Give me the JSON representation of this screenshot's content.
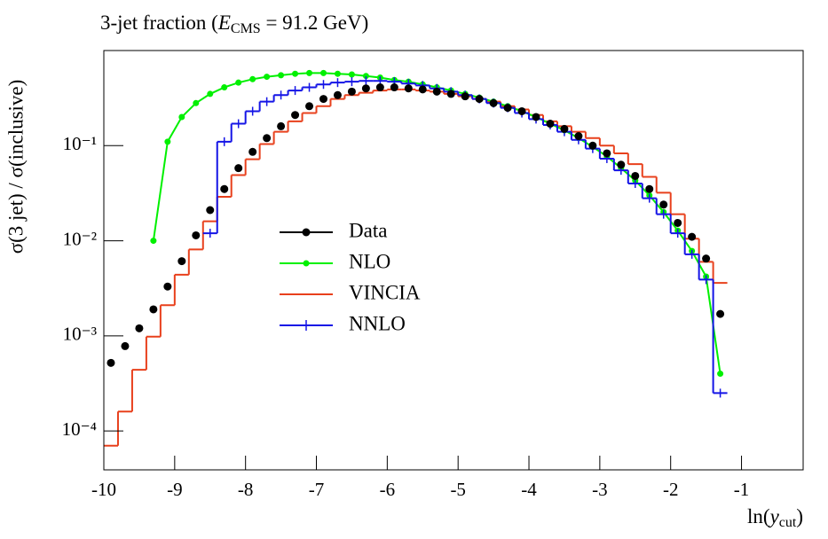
{
  "chart_data": {
    "type": "hist-log",
    "title": [
      "3-jet fraction (",
      "E",
      "CMS",
      " = 91.2 GeV)"
    ],
    "y_label": "σ(3 jet) / σ(inclusive)",
    "x_label": [
      "ln(",
      "y",
      "cut",
      ")"
    ],
    "log_y": true,
    "legend": "center",
    "xlim": [
      -10,
      -0.13
    ],
    "xticks": [
      -10,
      -9,
      -8,
      -7,
      -6,
      -5,
      -4,
      -3,
      -2,
      -1
    ],
    "ylim": [
      3.9e-05,
      1
    ],
    "yticks": [
      {
        "value": 0.1,
        "label": "10⁻¹"
      },
      {
        "value": 0.01,
        "label": "10⁻²"
      },
      {
        "value": 0.001,
        "label": "10⁻³"
      },
      {
        "value": 0.0001,
        "label": "10⁻⁴"
      }
    ],
    "bins": [
      -10,
      -9.8,
      -9.6,
      -9.4,
      -9.2,
      -9,
      -8.8,
      -8.6,
      -8.4,
      -8.2,
      -8,
      -7.8,
      -7.6,
      -7.4,
      -7.2,
      -7,
      -6.8,
      -6.6,
      -6.4,
      -6.2,
      -6,
      -5.8,
      -5.6,
      -5.4,
      -5.2,
      -5,
      -4.8,
      -4.6,
      -4.4,
      -4.2,
      -4,
      -3.8,
      -3.6,
      -3.4,
      -3.2,
      -3,
      -2.8,
      -2.6,
      -2.4,
      -2.2,
      -2,
      -1.8,
      -1.6,
      -1.4,
      -1.2
    ],
    "x": [
      -9.9,
      -9.7,
      -9.5,
      -9.3,
      -9.1,
      -8.9,
      -8.7,
      -8.5,
      -8.3,
      -8.1,
      -7.9,
      -7.7,
      -7.5,
      -7.3,
      -7.1,
      -6.9,
      -6.7,
      -6.5,
      -6.3,
      -6.1,
      -5.9,
      -5.7,
      -5.5,
      -5.3,
      -5.1,
      -4.9,
      -4.7,
      -4.5,
      -4.3,
      -4.1,
      -3.9,
      -3.7,
      -3.5,
      -3.3,
      -3.1,
      -2.9,
      -2.7,
      -2.5,
      -2.3,
      -2.1,
      -1.9,
      -1.7,
      -1.5,
      -1.3
    ],
    "series": [
      {
        "name": "Data",
        "color": "#000000",
        "style": "points",
        "values": [
          0.00052,
          0.00078,
          0.0012,
          0.0019,
          0.0033,
          0.0061,
          0.0114,
          0.021,
          0.035,
          0.058,
          0.086,
          0.12,
          0.16,
          0.21,
          0.26,
          0.31,
          0.34,
          0.37,
          0.4,
          0.41,
          0.41,
          0.4,
          0.39,
          0.37,
          0.35,
          0.33,
          0.31,
          0.28,
          0.25,
          0.23,
          0.2,
          0.17,
          0.15,
          0.126,
          0.1,
          0.083,
          0.063,
          0.048,
          0.035,
          0.024,
          0.0154,
          0.011,
          0.0065,
          0.0017
        ]
      },
      {
        "name": "NLO",
        "color": "#00f000",
        "style": "line-points",
        "values": [
          null,
          null,
          null,
          0.01,
          0.11,
          0.2,
          0.28,
          0.35,
          0.41,
          0.46,
          0.5,
          0.53,
          0.55,
          0.57,
          0.58,
          0.58,
          0.57,
          0.56,
          0.54,
          0.52,
          0.49,
          0.47,
          0.44,
          0.41,
          0.38,
          0.35,
          0.32,
          0.29,
          0.26,
          0.23,
          0.2,
          0.17,
          0.145,
          0.12,
          0.097,
          0.077,
          0.058,
          0.043,
          0.03,
          0.02,
          0.0128,
          0.0078,
          0.0042,
          0.0004
        ]
      },
      {
        "name": "VINCIA",
        "color": "#e8401c",
        "style": "step",
        "values": [
          7e-05,
          0.00016,
          0.00044,
          0.00098,
          0.0021,
          0.0044,
          0.0081,
          0.016,
          0.029,
          0.049,
          0.072,
          0.104,
          0.14,
          0.18,
          0.22,
          0.26,
          0.31,
          0.34,
          0.36,
          0.38,
          0.39,
          0.39,
          0.38,
          0.37,
          0.35,
          0.33,
          0.31,
          0.29,
          0.26,
          0.24,
          0.21,
          0.18,
          0.16,
          0.14,
          0.12,
          0.1,
          0.083,
          0.064,
          0.047,
          0.032,
          0.019,
          0.0105,
          0.006,
          0.0036
        ]
      },
      {
        "name": "NNLO",
        "color": "#1414e6",
        "style": "step-cross",
        "values": [
          null,
          null,
          null,
          null,
          null,
          null,
          null,
          0.012,
          0.11,
          0.17,
          0.23,
          0.29,
          0.34,
          0.38,
          0.41,
          0.44,
          0.46,
          0.47,
          0.48,
          0.48,
          0.47,
          0.45,
          0.43,
          0.4,
          0.37,
          0.34,
          0.31,
          0.28,
          0.25,
          0.22,
          0.19,
          0.165,
          0.14,
          0.115,
          0.093,
          0.073,
          0.055,
          0.04,
          0.028,
          0.019,
          0.012,
          0.0072,
          0.0039,
          0.00025
        ]
      }
    ]
  }
}
